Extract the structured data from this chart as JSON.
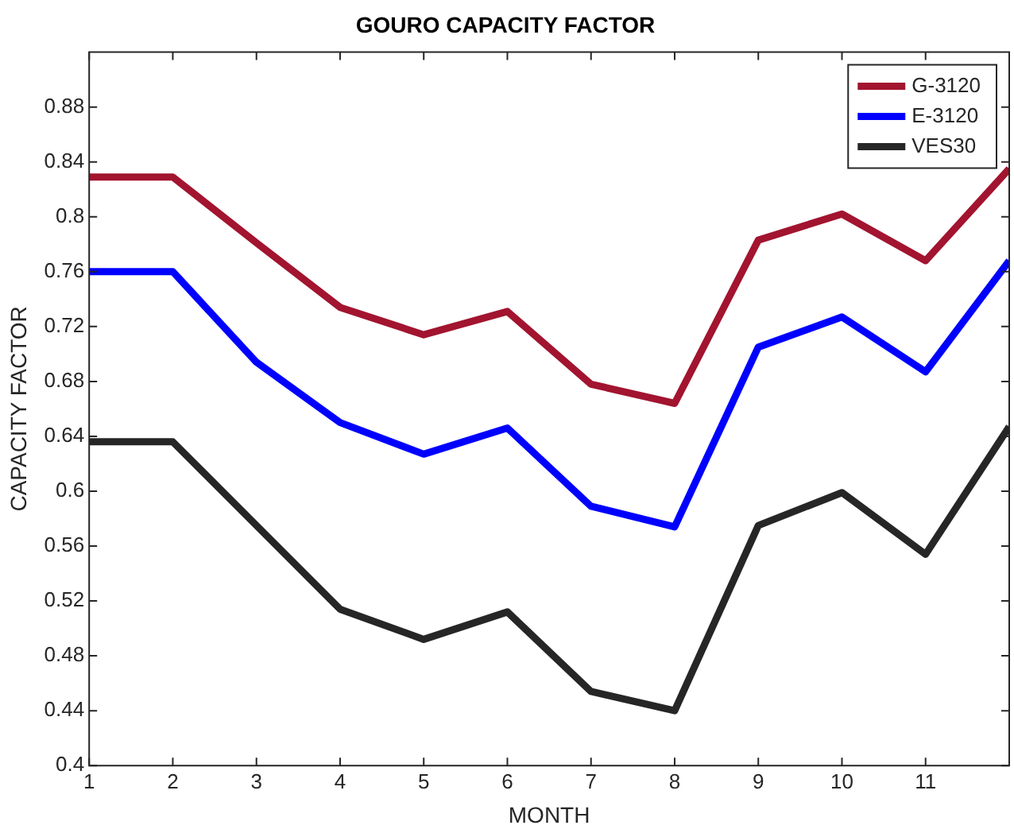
{
  "chart_data": {
    "type": "line",
    "title": "GOURO CAPACITY FACTOR",
    "xlabel": "MONTH",
    "ylabel": "CAPACITY FACTOR",
    "x": [
      1,
      2,
      3,
      4,
      5,
      6,
      7,
      8,
      9,
      10,
      11,
      12
    ],
    "xlim": [
      1,
      12
    ],
    "xticks": [
      1,
      2,
      3,
      4,
      5,
      6,
      7,
      8,
      9,
      10,
      11,
      {
        "value": 12,
        "label": null
      }
    ],
    "ylim": [
      0.4,
      0.92
    ],
    "yticks": [
      0.4,
      0.44,
      0.48,
      0.52,
      0.56,
      0.6,
      0.64,
      0.68,
      0.72,
      0.76,
      0.8,
      0.84,
      0.88
    ],
    "series": [
      {
        "name": "G-3120",
        "color": "#a2142f",
        "values": [
          0.829,
          0.829,
          0.781,
          0.734,
          0.714,
          0.731,
          0.678,
          0.664,
          0.783,
          0.802,
          0.768,
          0.835
        ]
      },
      {
        "name": "E-3120",
        "color": "#0000ff",
        "values": [
          0.76,
          0.76,
          0.694,
          0.65,
          0.627,
          0.646,
          0.589,
          0.574,
          0.705,
          0.727,
          0.687,
          0.768
        ]
      },
      {
        "name": "VES30",
        "color": "#262626",
        "values": [
          0.636,
          0.636,
          0.575,
          0.514,
          0.492,
          0.512,
          0.454,
          0.44,
          0.575,
          0.599,
          0.554,
          0.647
        ]
      }
    ],
    "legend": "top right",
    "grid": false,
    "marker": "none",
    "line_style": "solid"
  }
}
